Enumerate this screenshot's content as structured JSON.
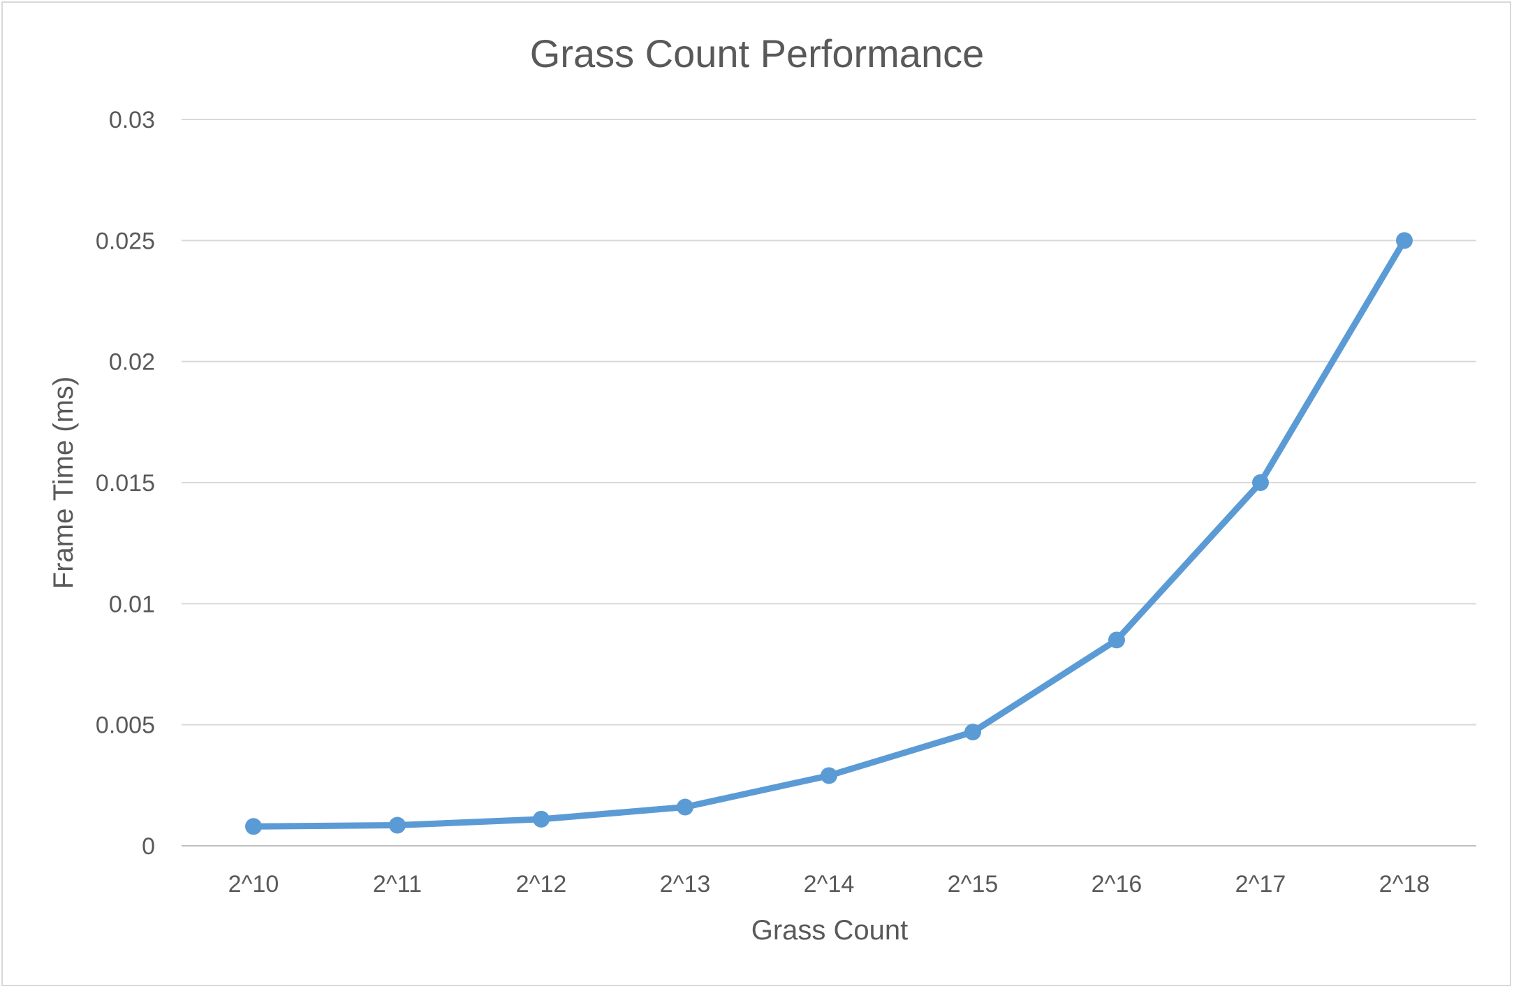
{
  "chart_data": {
    "type": "line",
    "title": "Grass Count Performance",
    "xlabel": "Grass Count",
    "ylabel": "Frame Time (ms)",
    "categories": [
      "2^10",
      "2^11",
      "2^12",
      "2^13",
      "2^14",
      "2^15",
      "2^16",
      "2^17",
      "2^18"
    ],
    "series": [
      {
        "values": [
          0.0008,
          0.00085,
          0.0011,
          0.0016,
          0.0029,
          0.0047,
          0.0085,
          0.015,
          0.025
        ],
        "color": "#5b9bd5"
      }
    ],
    "ylim": [
      0,
      0.03
    ],
    "yticks": [
      "0",
      "0.005",
      "0.01",
      "0.015",
      "0.02",
      "0.025",
      "0.03"
    ],
    "ytick_values": [
      0,
      0.005,
      0.01,
      0.015,
      0.02,
      0.025,
      0.03
    ],
    "grid": true,
    "legend": "none",
    "markers": true
  }
}
